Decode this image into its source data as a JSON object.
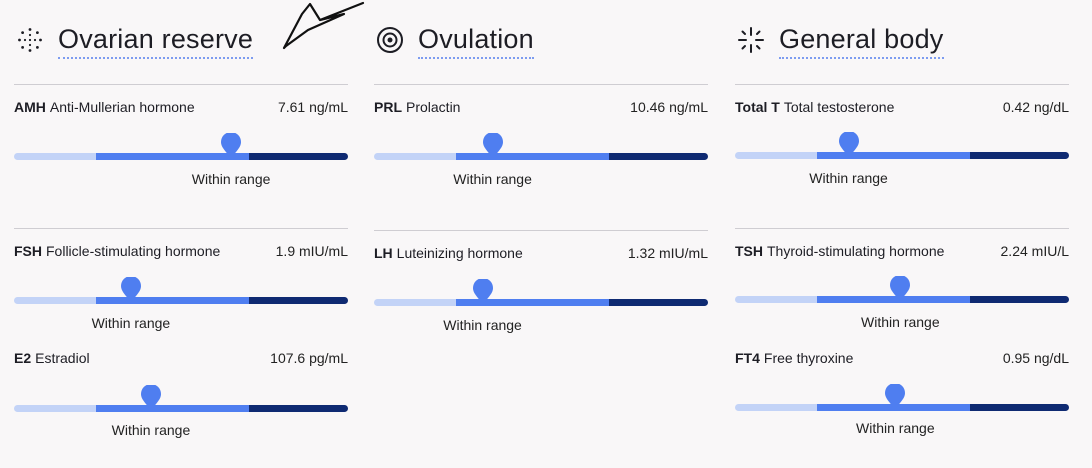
{
  "colors": {
    "low": "#c3d3f7",
    "mid": "#4f7ef0",
    "high": "#0f2a72",
    "marker": "#4f7ef0"
  },
  "columns": [
    {
      "title": "Ovarian reserve",
      "icon": "dotted-circle-icon",
      "cards": [
        {
          "abbr": "AMH",
          "name": "Anti-Mullerian hormone",
          "value": "7.61 ng/mL",
          "level": 0.65,
          "status": "Within range"
        },
        {
          "abbr": "FSH",
          "name": "Follicle-stimulating hormone",
          "value": "1.9 mIU/mL",
          "level": 0.35,
          "status": "Within range"
        },
        {
          "abbr": "E2",
          "name": "Estradiol",
          "value": "107.6 pg/mL",
          "level": 0.41,
          "status": "Within range"
        }
      ]
    },
    {
      "title": "Ovulation",
      "icon": "target-circle-icon",
      "cards": [
        {
          "abbr": "PRL",
          "name": "Prolactin",
          "value": "10.46 ng/mL",
          "level": 0.355,
          "status": "Within range"
        },
        {
          "abbr": "LH",
          "name": "Luteinizing hormone",
          "value": "1.32 mIU/mL",
          "level": 0.325,
          "status": "Within range"
        }
      ]
    },
    {
      "title": "General body",
      "icon": "sparkle-cross-icon",
      "cards": [
        {
          "abbr": "Total T",
          "name": "Total testosterone",
          "value": "0.42 ng/dL",
          "level": 0.34,
          "status": "Within range"
        },
        {
          "abbr": "TSH",
          "name": "Thyroid-stimulating hormone",
          "value": "2.24 mIU/L",
          "level": 0.495,
          "status": "Within range"
        },
        {
          "abbr": "FT4",
          "name": "Free thyroxine",
          "value": "0.95 ng/dL",
          "level": 0.48,
          "status": "Within range"
        }
      ]
    }
  ]
}
